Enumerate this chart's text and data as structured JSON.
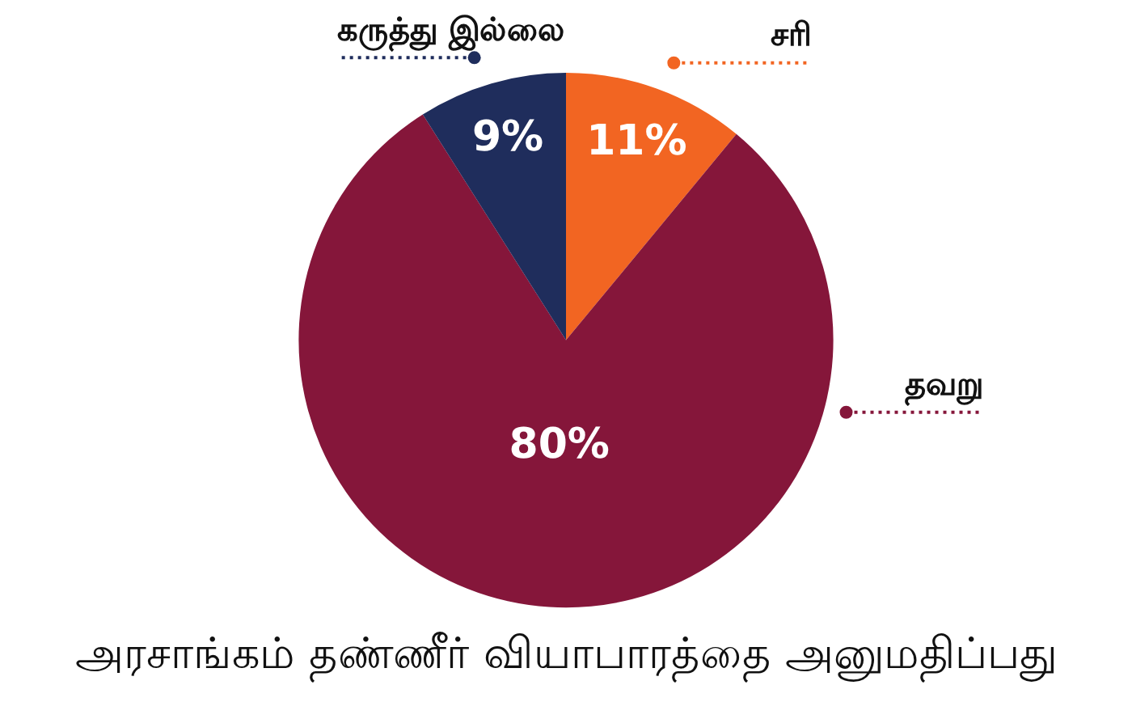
{
  "chart_data": {
    "type": "pie",
    "title": "அரசாங்கம் தண்ணீர் வியாபாரத்தை அனுமதிப்பது",
    "categories": [
      "சரி",
      "தவறு",
      "கருத்து இல்லை"
    ],
    "values": [
      11,
      80,
      9
    ],
    "colors": [
      "#f26522",
      "#85163a",
      "#1f2d5c"
    ],
    "value_labels": [
      "11%",
      "80%",
      "9%"
    ],
    "legend": false
  }
}
